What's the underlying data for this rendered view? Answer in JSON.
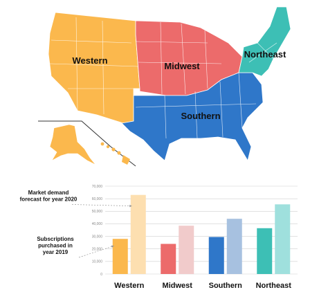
{
  "map": {
    "regions": [
      {
        "key": "western",
        "label": "Western",
        "color": "#fbb84d"
      },
      {
        "key": "midwest",
        "label": "Midwest",
        "color": "#ec6b6b"
      },
      {
        "key": "southern",
        "label": "Southern",
        "color": "#2f77c9"
      },
      {
        "key": "northeast",
        "label": "Northeast",
        "color": "#3dbfb5"
      }
    ]
  },
  "chart_data": {
    "type": "bar",
    "categories": [
      "Western",
      "Midwest",
      "Southern",
      "Northeast"
    ],
    "series": [
      {
        "key": "subscriptions_2019",
        "values": [
          28000,
          24000,
          29500,
          36500
        ],
        "colors": [
          "#fbb84d",
          "#ec6b6b",
          "#2f77c9",
          "#3dbfb5"
        ]
      },
      {
        "key": "forecast_2020",
        "values": [
          63000,
          38500,
          44000,
          55500
        ],
        "colors": [
          "#fddfb0",
          "#f1cbcb",
          "#a7c1e0",
          "#9fe0dd"
        ]
      }
    ],
    "y_ticks": [
      "70,000",
      "60,000",
      "50,000",
      "40,000",
      "30,000",
      "20,000",
      "10,000",
      "0"
    ],
    "ylim": [
      0,
      70000
    ],
    "grid": true,
    "annotations": [
      {
        "series": "forecast_2020",
        "lines": [
          "Market demand",
          "forecast for year 2020"
        ]
      },
      {
        "series": "subscriptions_2019",
        "lines": [
          "Subscriptions",
          "purchased in",
          "year 2019"
        ]
      }
    ]
  }
}
